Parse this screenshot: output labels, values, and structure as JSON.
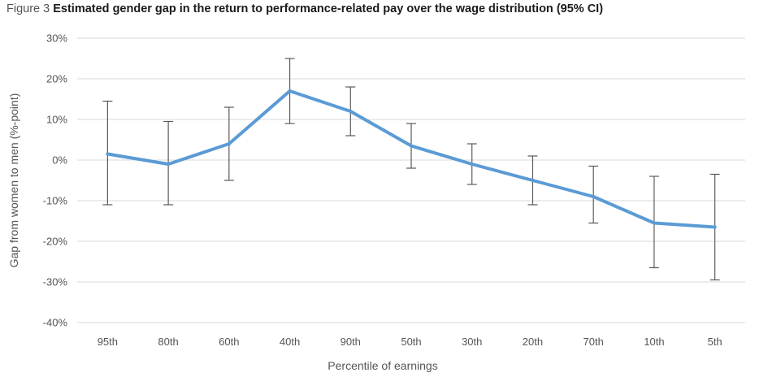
{
  "figure_label": "Figure 3",
  "chart_data": {
    "type": "line",
    "title": "Estimated gender gap in the return to performance-related pay over the wage distribution (95% CI)",
    "xlabel": "Percentile of earnings",
    "ylabel": "Gap from women to men (%-point)",
    "categories": [
      "95th",
      "80th",
      "60th",
      "40th",
      "90th",
      "50th",
      "30th",
      "20th",
      "70th",
      "10th",
      "5th"
    ],
    "ylim": [
      -40,
      30
    ],
    "yticks": [
      30,
      20,
      10,
      0,
      -10,
      -20,
      -30,
      -40
    ],
    "ytick_labels": [
      "30%",
      "20%",
      "10%",
      "0%",
      "-10%",
      "-20%",
      "-30%",
      "-40%"
    ],
    "grid": true,
    "series": [
      {
        "values": [
          1.5,
          -1.0,
          4.0,
          17.0,
          12.0,
          3.5,
          -1.0,
          -5.0,
          -9.0,
          -15.5,
          -16.5
        ],
        "ci_low": [
          -11.0,
          -11.0,
          -5.0,
          9.0,
          6.0,
          -2.0,
          -6.0,
          -11.0,
          -15.5,
          -26.5,
          -29.5
        ],
        "ci_high": [
          14.5,
          9.5,
          13.0,
          25.0,
          18.0,
          9.0,
          4.0,
          1.0,
          -1.5,
          -4.0,
          -3.5
        ],
        "color": "#5B9BD5"
      }
    ],
    "errorbar_color": "#595959",
    "gridline_color": "#d9d9d9"
  }
}
